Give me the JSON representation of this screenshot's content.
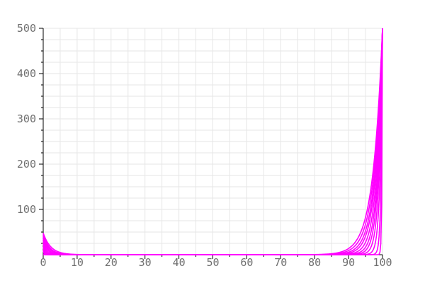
{
  "chart_data": {
    "type": "line",
    "title": "",
    "xlabel": "",
    "ylabel": "",
    "xlim": [
      0,
      100
    ],
    "ylim": [
      0,
      500
    ],
    "x_ticks": [
      0,
      10,
      20,
      30,
      40,
      50,
      60,
      70,
      80,
      90,
      100
    ],
    "y_ticks": [
      100,
      200,
      300,
      400,
      500
    ],
    "grid": true,
    "legend": "none",
    "line_color": "#ff00ff",
    "grid_color": "#e6e6e6",
    "tick_label_color": "#707070",
    "series": [
      {
        "left_start": 48,
        "left_decay": 0.45,
        "right_end": 500,
        "right_decay": 0.36
      },
      {
        "left_start": 46,
        "left_decay": 0.55,
        "right_end": 500,
        "right_decay": 0.4
      },
      {
        "left_start": 44,
        "left_decay": 0.65,
        "right_end": 500,
        "right_decay": 0.45
      },
      {
        "left_start": 42,
        "left_decay": 0.8,
        "right_end": 500,
        "right_decay": 0.5
      },
      {
        "left_start": 40,
        "left_decay": 1.0,
        "right_end": 500,
        "right_decay": 0.58
      },
      {
        "left_start": 36,
        "left_decay": 1.3,
        "right_end": 500,
        "right_decay": 0.68
      },
      {
        "left_start": 32,
        "left_decay": 1.8,
        "right_end": 500,
        "right_decay": 0.8
      },
      {
        "left_start": 26,
        "left_decay": 2.6,
        "right_end": 500,
        "right_decay": 1.0
      },
      {
        "left_start": 18,
        "left_decay": 4.0,
        "right_end": 500,
        "right_decay": 1.4
      },
      {
        "left_start": 10,
        "left_decay": 8.0,
        "right_end": 500,
        "right_decay": 2.5
      },
      {
        "left_start": 0,
        "left_decay": 10.0,
        "right_end": 500,
        "right_decay": 6.0
      }
    ]
  }
}
